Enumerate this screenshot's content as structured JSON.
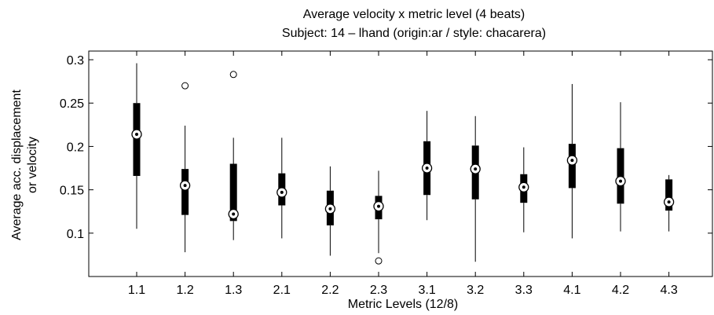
{
  "chart_data": {
    "type": "box",
    "title": "Average velocity x metric level (4 beats)",
    "subtitle": "Subject: 14 – lhand (origin:ar / style: chacarera)",
    "xlabel": "Metric Levels (12/8)",
    "ylabel": [
      "Average acc. displacement",
      "or velocity"
    ],
    "categories": [
      "1.1",
      "1.2",
      "1.3",
      "2.1",
      "2.2",
      "2.3",
      "3.1",
      "3.2",
      "3.3",
      "4.1",
      "4.2",
      "4.3"
    ],
    "ylim": [
      0.05,
      0.31
    ],
    "yticks": [
      0.1,
      0.15,
      0.2,
      0.25,
      0.3
    ],
    "ytick_labels": [
      "0.1",
      "0.15",
      "0.2",
      "0.25",
      "0.3"
    ],
    "grid": false,
    "boxes": [
      {
        "min": 0.105,
        "q1": 0.166,
        "median": 0.214,
        "q3": 0.25,
        "max": 0.296,
        "outliers": []
      },
      {
        "min": 0.078,
        "q1": 0.121,
        "median": 0.155,
        "q3": 0.174,
        "max": 0.224,
        "outliers": [
          0.27
        ]
      },
      {
        "min": 0.092,
        "q1": 0.114,
        "median": 0.122,
        "q3": 0.18,
        "max": 0.21,
        "outliers": [
          0.283
        ]
      },
      {
        "min": 0.094,
        "q1": 0.132,
        "median": 0.147,
        "q3": 0.169,
        "max": 0.21,
        "outliers": []
      },
      {
        "min": 0.074,
        "q1": 0.109,
        "median": 0.128,
        "q3": 0.149,
        "max": 0.177,
        "outliers": []
      },
      {
        "min": 0.077,
        "q1": 0.116,
        "median": 0.131,
        "q3": 0.143,
        "max": 0.172,
        "outliers": [
          0.068
        ]
      },
      {
        "min": 0.115,
        "q1": 0.144,
        "median": 0.175,
        "q3": 0.206,
        "max": 0.241,
        "outliers": []
      },
      {
        "min": 0.067,
        "q1": 0.139,
        "median": 0.174,
        "q3": 0.201,
        "max": 0.235,
        "outliers": []
      },
      {
        "min": 0.101,
        "q1": 0.135,
        "median": 0.153,
        "q3": 0.168,
        "max": 0.199,
        "outliers": []
      },
      {
        "min": 0.094,
        "q1": 0.152,
        "median": 0.184,
        "q3": 0.203,
        "max": 0.272,
        "outliers": []
      },
      {
        "min": 0.102,
        "q1": 0.134,
        "median": 0.16,
        "q3": 0.198,
        "max": 0.251,
        "outliers": []
      },
      {
        "min": 0.102,
        "q1": 0.126,
        "median": 0.136,
        "q3": 0.162,
        "max": 0.167,
        "outliers": []
      }
    ],
    "colors": {
      "box": "#000000",
      "whisker": "#000000",
      "median_marker": "#000000",
      "background": "#ffffff"
    }
  }
}
